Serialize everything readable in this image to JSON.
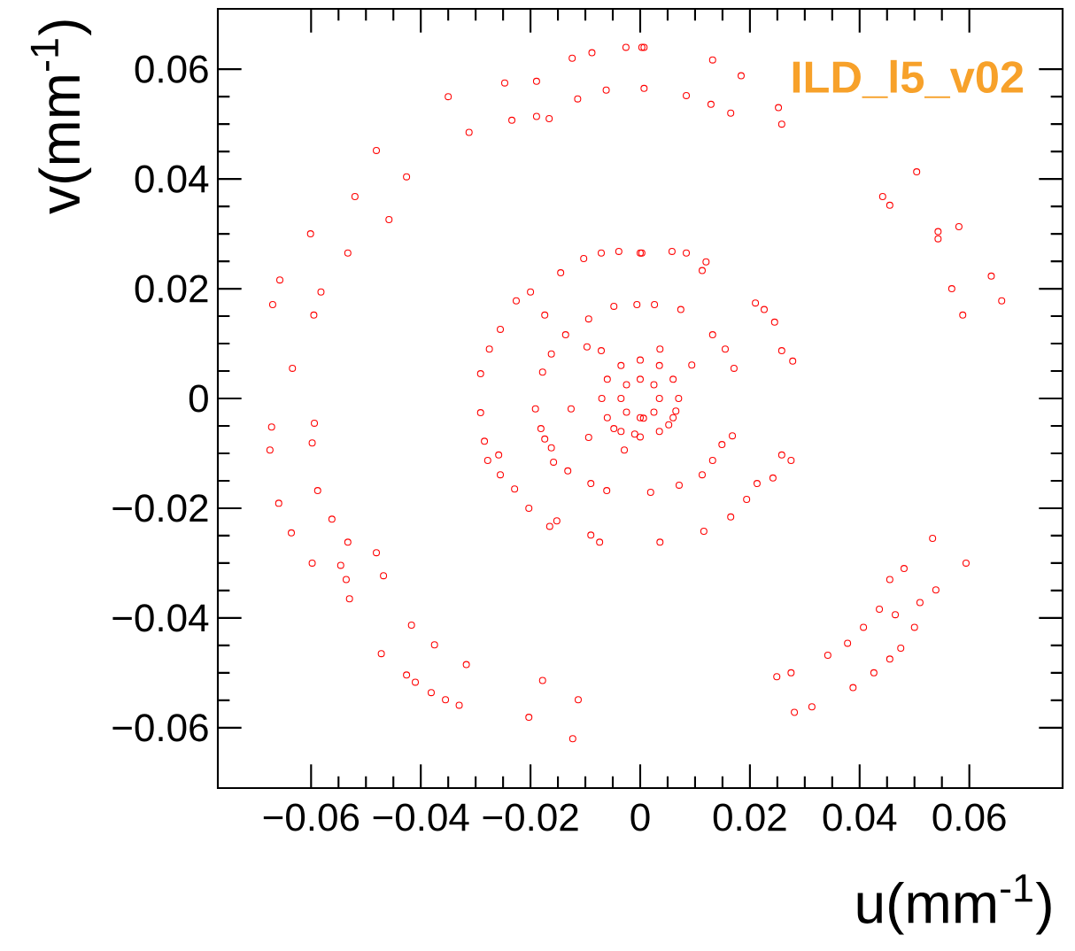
{
  "chart_data": {
    "type": "scatter",
    "xlabel": "u(mm$^{-1}$)",
    "ylabel": "v(mm$^{-1}$)",
    "annotations": [
      "ILD_l5_v02"
    ],
    "xlim": [
      -0.077,
      0.077
    ],
    "ylim": [
      -0.071,
      0.071
    ],
    "xticks": [
      {
        "value": -0.06,
        "label": "−0.06"
      },
      {
        "value": -0.04,
        "label": "−0.04"
      },
      {
        "value": -0.02,
        "label": "−0.02"
      },
      0,
      0.02,
      0.04,
      0.06
    ],
    "yticks": [
      {
        "value": -0.06,
        "label": "−0.06"
      },
      {
        "value": -0.04,
        "label": "−0.04"
      },
      {
        "value": -0.02,
        "label": "−0.02"
      },
      0,
      0.02,
      0.04,
      0.06
    ],
    "marker": "circle",
    "grid": false,
    "series": [
      {
        "color": "#ff0000",
        "x": [
          -0.035,
          -0.0247,
          -0.0189,
          -0.0124,
          -0.0088,
          -0.0026,
          0.0007,
          -0.0234,
          -0.0189,
          -0.0166,
          -0.0114,
          -0.0062,
          0.0007,
          -0.0312,
          -0.0481,
          -0.0426,
          -0.052,
          -0.0458,
          -0.0601,
          -0.0533,
          -0.0657,
          -0.067,
          -0.0595,
          -0.0582,
          -0.0634,
          0.0003,
          0.0132,
          0.0184,
          0.0084,
          0.0129,
          0.0165,
          0.0252,
          0.0258,
          0.0504,
          0.0442,
          0.0455,
          0.0543,
          0.0581,
          0.0543,
          0.064,
          0.0568,
          0.0659,
          0.0588,
          -0.0672,
          -0.0675,
          -0.0594,
          -0.0598,
          -0.0659,
          -0.0588,
          -0.0636,
          -0.0598,
          -0.0562,
          -0.0533,
          -0.0546,
          -0.0536,
          -0.053,
          -0.0481,
          -0.0468,
          -0.0417,
          -0.0472,
          -0.0375,
          -0.0317,
          -0.0426,
          -0.041,
          -0.0381,
          -0.0355,
          -0.033,
          -0.0203,
          -0.0178,
          -0.0123,
          -0.0113,
          -0.0291,
          -0.0284,
          -0.0278,
          -0.0258,
          -0.0255,
          -0.0229,
          -0.0203,
          -0.0165,
          -0.0152,
          -0.009,
          -0.0074,
          -0.0191,
          -0.0181,
          -0.0174,
          -0.0162,
          -0.0158,
          -0.0132,
          -0.009,
          -0.0061,
          -0.0029,
          -0.0126,
          -0.0094,
          -0.0048,
          -0.001,
          0.0019,
          0.0036,
          0.0071,
          0.0116,
          0.0113,
          0.0132,
          0.0149,
          0.0168,
          0.0165,
          0.0194,
          0.0213,
          0.0242,
          0.0258,
          0.0275,
          0.0249,
          0.0275,
          0.0281,
          0.0313,
          0.0342,
          0.0378,
          0.0407,
          0.0436,
          0.0465,
          0.0455,
          0.0481,
          0.0388,
          0.0426,
          0.0455,
          0.0475,
          0.05,
          0.051,
          0.0539,
          0.0533,
          0.0594,
          0.0006,
          0.0052,
          0.0065,
          -0.0103,
          -0.0071,
          -0.0039,
          0,
          -0.0145,
          -0.02,
          -0.0226,
          -0.0174,
          -0.0255,
          -0.0275,
          -0.0291,
          -0.0178,
          -0.0162,
          -0.0136,
          -0.0094,
          -0.0048,
          -0.0006,
          -0.0097,
          -0.0071,
          0.0003,
          0.0058,
          0.0084,
          0.012,
          0.0113,
          0.0026,
          0.0074,
          0.021,
          0.0226,
          0.0245,
          0.0258,
          0.0278,
          0.0132,
          0.0155,
          0.0171,
          0.0094,
          0.0036,
          0,
          0.0025,
          0.0035,
          0.0025,
          0,
          -0.0025,
          -0.0035,
          -0.0025,
          0,
          0.0035,
          0.006,
          0.007,
          0.006,
          0.0035,
          0,
          -0.0035,
          -0.006,
          -0.007,
          -0.006,
          -0.0035
        ],
        "values": [
          0.055,
          0.0575,
          0.0578,
          0.062,
          0.063,
          0.064,
          0.064,
          0.0507,
          0.0514,
          0.051,
          0.0546,
          0.0562,
          0.0565,
          0.0485,
          0.0452,
          0.0404,
          0.0368,
          0.0326,
          0.03,
          0.0265,
          0.0216,
          0.0171,
          0.0152,
          0.0194,
          0.0055,
          0.064,
          0.0617,
          0.0588,
          0.0552,
          0.0536,
          0.052,
          0.053,
          0.05,
          0.0413,
          0.0368,
          0.0352,
          0.0304,
          0.0313,
          0.0291,
          0.0223,
          0.02,
          0.0178,
          0.0152,
          -0.0052,
          -0.0094,
          -0.0045,
          -0.0081,
          -0.0191,
          -0.0168,
          -0.0245,
          -0.03,
          -0.022,
          -0.0262,
          -0.0304,
          -0.033,
          -0.0365,
          -0.0281,
          -0.0323,
          -0.0413,
          -0.0465,
          -0.0449,
          -0.0485,
          -0.0504,
          -0.0517,
          -0.0536,
          -0.0549,
          -0.0559,
          -0.0581,
          -0.0514,
          -0.062,
          -0.0549,
          -0.0026,
          -0.0078,
          -0.0113,
          -0.0103,
          -0.0139,
          -0.0165,
          -0.02,
          -0.0233,
          -0.0223,
          -0.0249,
          -0.0262,
          -0.0019,
          -0.0055,
          -0.0074,
          -0.009,
          -0.0116,
          -0.0132,
          -0.0155,
          -0.0168,
          -0.0094,
          -0.0019,
          -0.0071,
          -0.0055,
          -0.0065,
          -0.0171,
          -0.0262,
          -0.0158,
          -0.0242,
          -0.0139,
          -0.0113,
          -0.0084,
          -0.0068,
          -0.0216,
          -0.0184,
          -0.0155,
          -0.0145,
          -0.0103,
          -0.0113,
          -0.0507,
          -0.05,
          -0.0572,
          -0.0562,
          -0.0468,
          -0.0446,
          -0.0417,
          -0.0384,
          -0.0394,
          -0.033,
          -0.031,
          -0.0527,
          -0.05,
          -0.0475,
          -0.0455,
          -0.0417,
          -0.0372,
          -0.0349,
          -0.0255,
          -0.03,
          -0.0036,
          -0.0048,
          -0.0023,
          0.0255,
          0.0265,
          0.0268,
          0.0265,
          0.0229,
          0.0194,
          0.0178,
          0.0152,
          0.0126,
          0.009,
          0.0045,
          0.0048,
          0.0081,
          0.0116,
          0.0145,
          0.0168,
          0.0171,
          0.0094,
          0.0087,
          0.0265,
          0.0268,
          0.0265,
          0.0249,
          0.0233,
          0.0171,
          0.0162,
          0.0174,
          0.0162,
          0.0139,
          0.0087,
          0.0068,
          0.0116,
          0.009,
          0.0055,
          0.0061,
          0.009,
          0.0035,
          0.0025,
          0,
          -0.0025,
          -0.0035,
          -0.0025,
          0,
          0.0025,
          0.007,
          0.006,
          0.0035,
          0,
          -0.0035,
          -0.006,
          -0.007,
          -0.006,
          -0.0035,
          0,
          0.0035,
          0.006
        ]
      }
    ]
  }
}
